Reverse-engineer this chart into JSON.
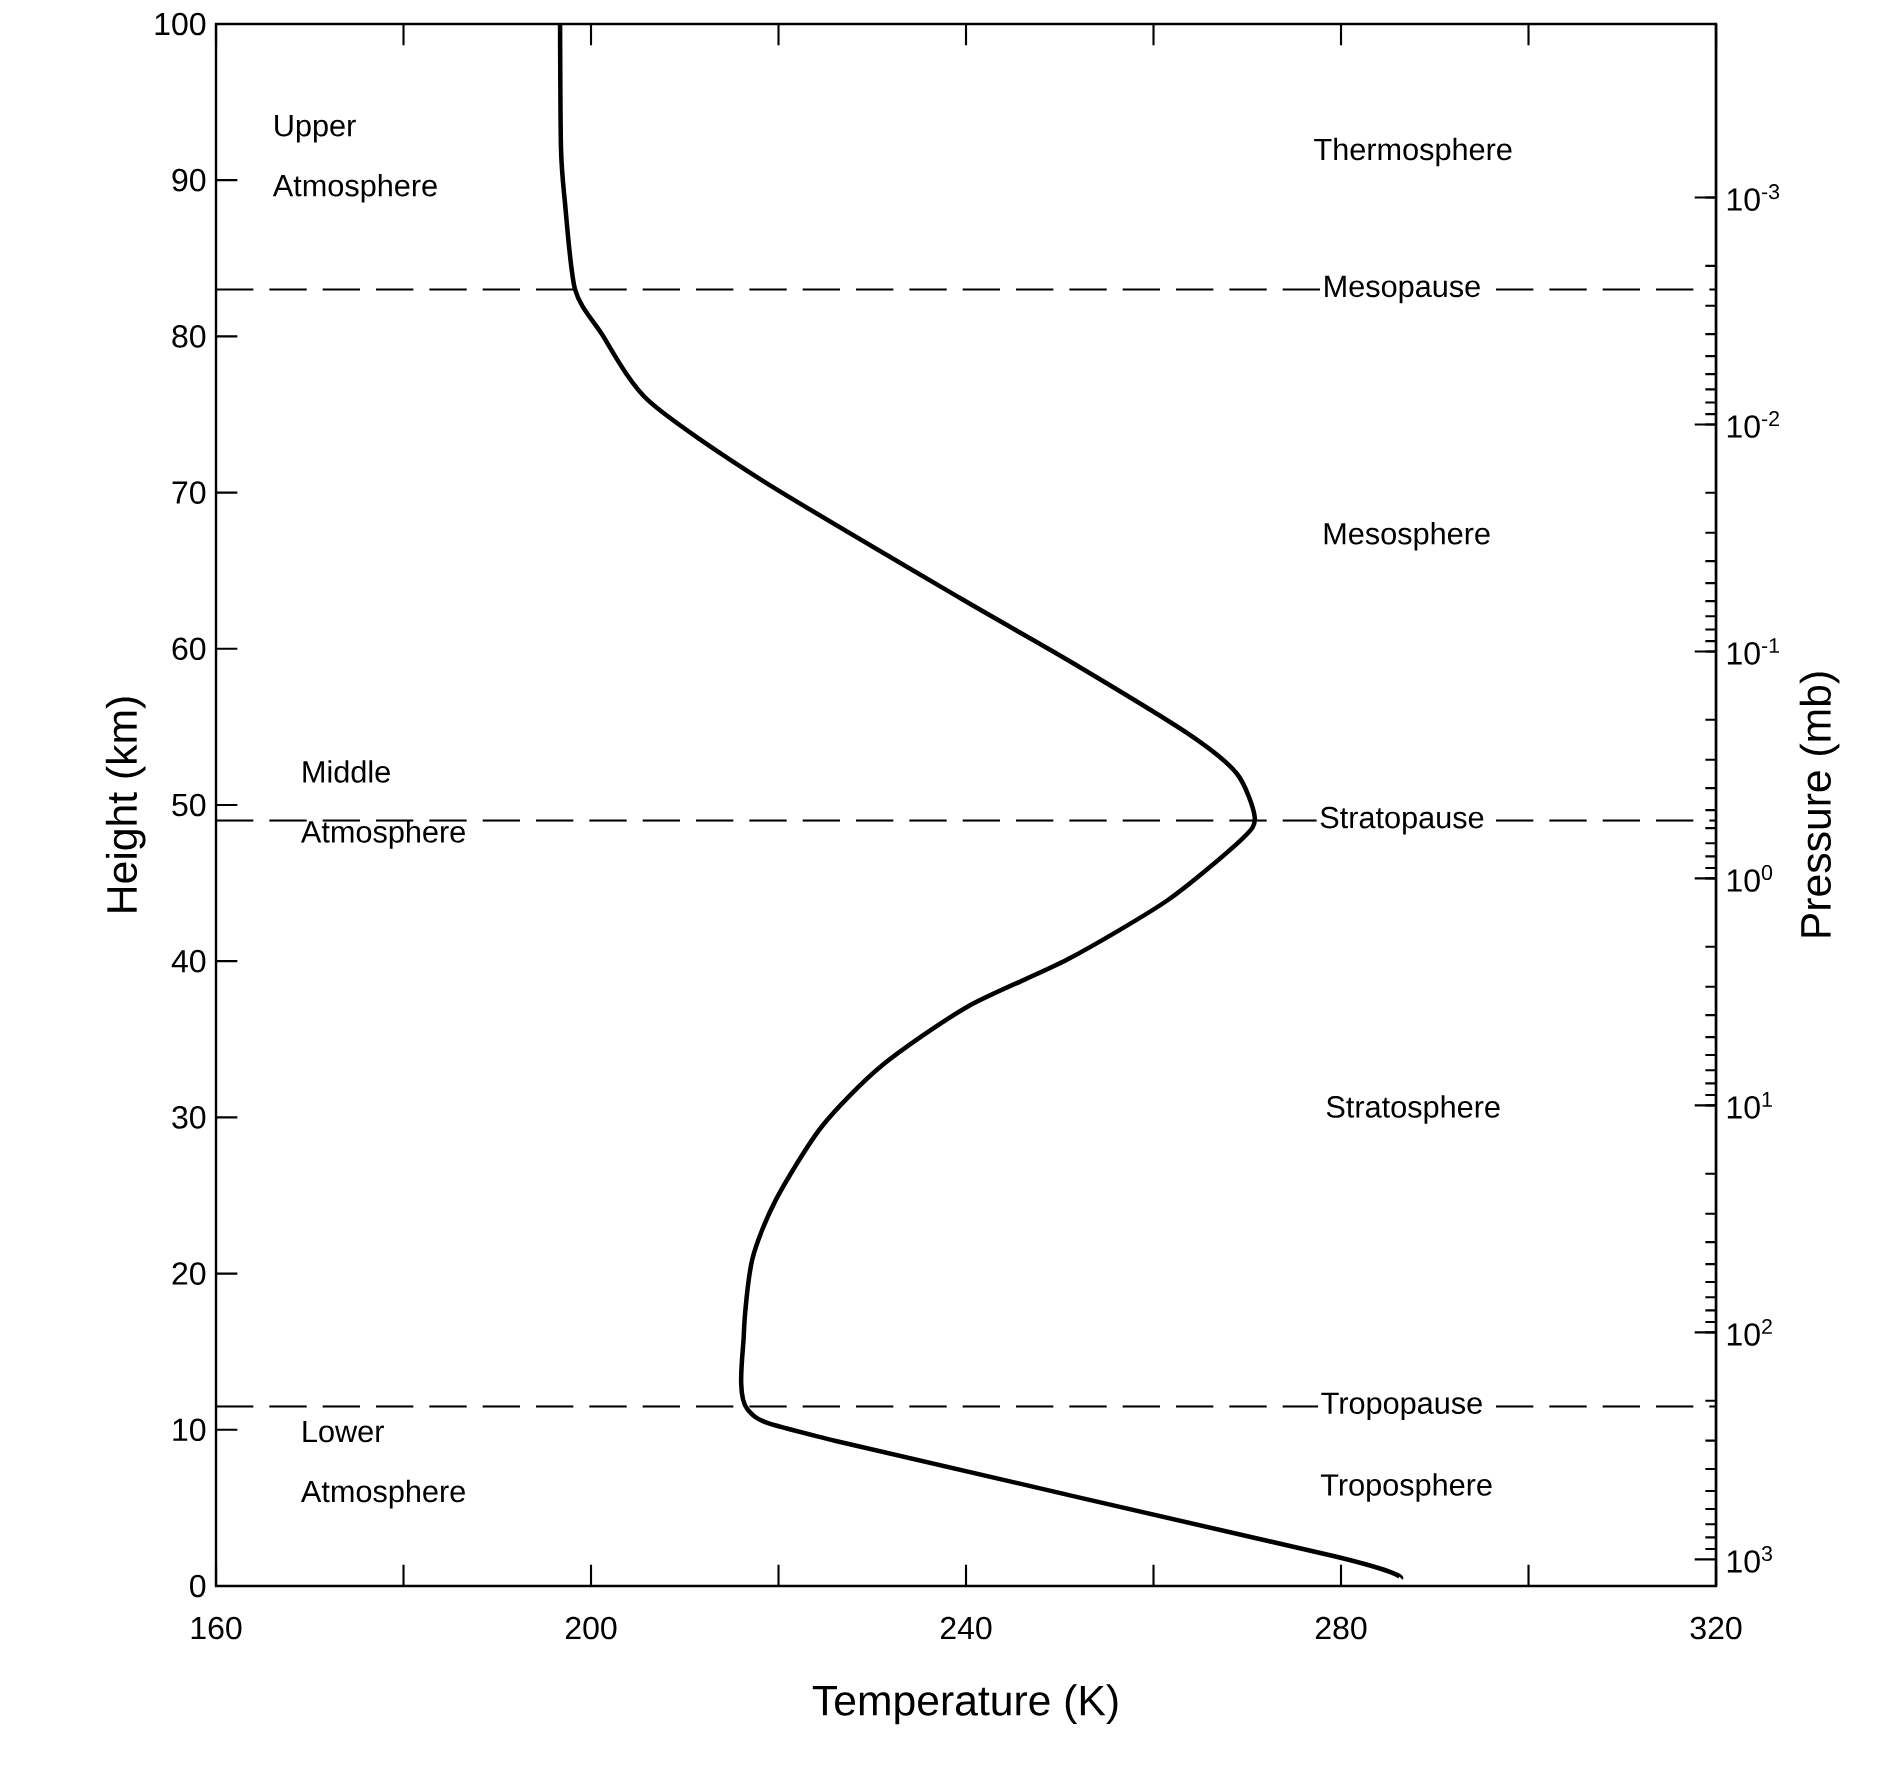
{
  "chart_data": {
    "type": "line",
    "xlabel": "Temperature (K)",
    "ylabel": "Height (km)",
    "y2label": "Pressure (mb)",
    "series": [
      {
        "color": "#000000",
        "x": [
          286.4,
          279.3,
          226.0,
          216.7,
          216.3,
          217.2,
          219.7,
          224.6,
          231.0,
          240.2,
          250.8,
          261.5,
          269.4,
          270.8,
          268.9,
          263.6,
          250.8,
          239.5,
          218.2,
          206.1,
          201.1,
          198.3,
          197.2,
          196.8,
          196.7
        ],
        "values": [
          0.5,
          1.9,
          9.3,
          11.3,
          16.1,
          20.9,
          24.7,
          29.4,
          33.3,
          37.1,
          40.1,
          43.9,
          47.8,
          49.2,
          52.0,
          54.6,
          59.3,
          63.2,
          70.8,
          75.9,
          80.2,
          83.0,
          88.7,
          92.0,
          100
        ]
      }
    ],
    "xlim": [
      160,
      320
    ],
    "xticks": [
      160,
      {
        "value": 180,
        "label": null
      },
      200,
      {
        "value": 220,
        "label": null
      },
      240,
      {
        "value": 260,
        "label": null
      },
      280,
      {
        "value": 300,
        "label": null
      },
      320
    ],
    "ylim": [
      0,
      100
    ],
    "yticks": [
      0,
      10,
      20,
      30,
      40,
      50,
      60,
      70,
      80,
      90,
      100
    ],
    "y2lim": [
      1310,
      0.000172
    ],
    "y2ticks": [
      {
        "value": 0.001,
        "label": "10$^{-3}$"
      },
      {
        "value": 0.01,
        "label": "10$^{-2}$"
      },
      {
        "value": 0.1,
        "label": "10$^{-1}$"
      },
      {
        "value": 1,
        "label": "10$^{0}$"
      },
      {
        "value": 10,
        "label": "10$^{1}$"
      },
      {
        "value": 100,
        "label": "10$^{2}$"
      },
      {
        "value": 1000,
        "label": "10$^{3}$"
      }
    ],
    "log": "y2",
    "grid": false,
    "marker": "none",
    "line_style": "solid",
    "ref_lines": [
      {
        "axis": "y",
        "value": 83,
        "label": "Mesopause",
        "color": "#000000",
        "line_style": "dashed"
      },
      {
        "axis": "y",
        "value": 49,
        "label": "Stratopause",
        "color": "#000000",
        "line_style": "dashed"
      },
      {
        "axis": "y",
        "value": 11.5,
        "label": "Tropopause",
        "color": "#000000",
        "line_style": "dashed"
      }
    ],
    "annotations": [
      "Upper Atmosphere",
      "Middle Atmosphere",
      "Lower Atmosphere",
      "Thermosphere",
      "Mesosphere",
      "Stratosphere",
      "Troposphere"
    ]
  }
}
